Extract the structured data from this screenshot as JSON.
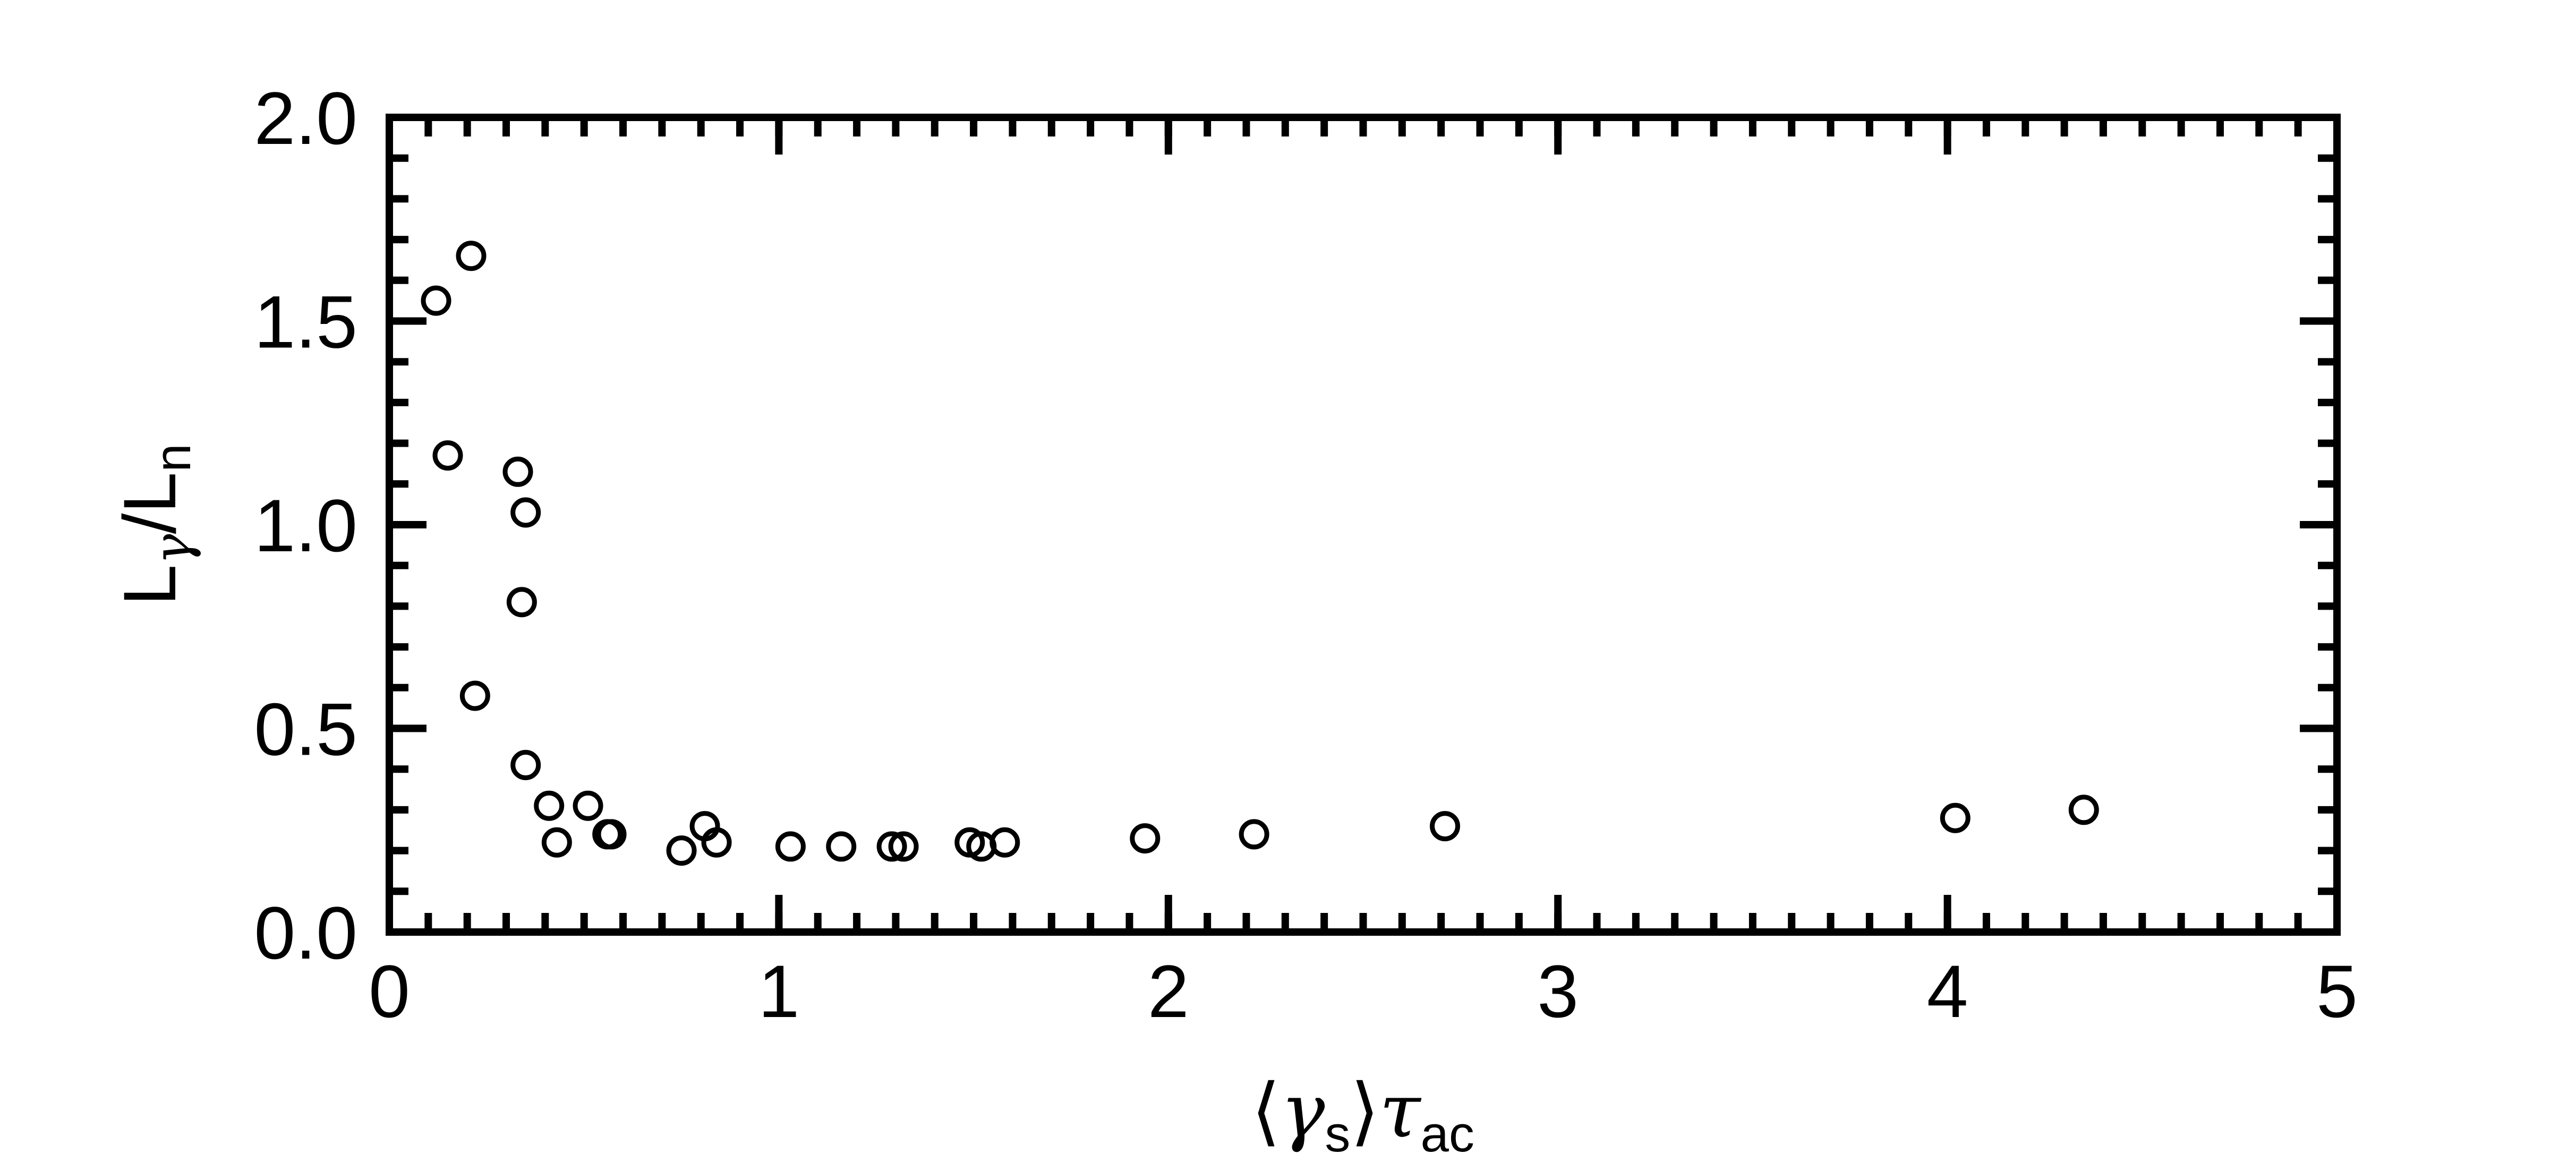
{
  "chart_data": {
    "type": "scatter",
    "xlabel": {
      "lang": "⟨",
      "gamma": "γ",
      "gamma_sub": "s",
      "rang": "⟩",
      "tau": "τ",
      "tau_sub": "ac"
    },
    "ylabel": {
      "L1": "L",
      "gamma_sub": "γ",
      "slash": "/",
      "L2": "L",
      "n_sub": "n"
    },
    "xlim": [
      0,
      5
    ],
    "ylim": [
      0,
      2
    ],
    "x_ticks": [
      {
        "value": 0,
        "label": "0"
      },
      {
        "value": 1,
        "label": "1"
      },
      {
        "value": 2,
        "label": "2"
      },
      {
        "value": 3,
        "label": "3"
      },
      {
        "value": 4,
        "label": "4"
      },
      {
        "value": 5,
        "label": "5"
      }
    ],
    "x_minor_step": 0.1,
    "y_ticks": [
      {
        "value": 0.0,
        "label": "0.0"
      },
      {
        "value": 0.5,
        "label": "0.5"
      },
      {
        "value": 1.0,
        "label": "1.0"
      },
      {
        "value": 1.5,
        "label": "1.5"
      },
      {
        "value": 2.0,
        "label": "2.0"
      }
    ],
    "y_minor_step": 0.1,
    "grid": false,
    "marker": "open-circle",
    "marker_color": "#000000",
    "points": [
      {
        "x": 0.12,
        "y": 1.55
      },
      {
        "x": 0.15,
        "y": 1.17
      },
      {
        "x": 0.21,
        "y": 1.66
      },
      {
        "x": 0.22,
        "y": 0.58
      },
      {
        "x": 0.33,
        "y": 1.13
      },
      {
        "x": 0.34,
        "y": 0.81
      },
      {
        "x": 0.35,
        "y": 1.03
      },
      {
        "x": 0.35,
        "y": 0.41
      },
      {
        "x": 0.41,
        "y": 0.31
      },
      {
        "x": 0.43,
        "y": 0.22
      },
      {
        "x": 0.51,
        "y": 0.31
      },
      {
        "x": 0.56,
        "y": 0.24
      },
      {
        "x": 0.57,
        "y": 0.24
      },
      {
        "x": 0.75,
        "y": 0.2
      },
      {
        "x": 0.81,
        "y": 0.26
      },
      {
        "x": 0.84,
        "y": 0.22
      },
      {
        "x": 1.03,
        "y": 0.21
      },
      {
        "x": 1.16,
        "y": 0.21
      },
      {
        "x": 1.29,
        "y": 0.21
      },
      {
        "x": 1.32,
        "y": 0.21
      },
      {
        "x": 1.49,
        "y": 0.22
      },
      {
        "x": 1.52,
        "y": 0.21
      },
      {
        "x": 1.58,
        "y": 0.22
      },
      {
        "x": 1.94,
        "y": 0.23
      },
      {
        "x": 2.22,
        "y": 0.24
      },
      {
        "x": 2.71,
        "y": 0.26
      },
      {
        "x": 4.02,
        "y": 0.28
      },
      {
        "x": 4.35,
        "y": 0.3
      }
    ]
  }
}
